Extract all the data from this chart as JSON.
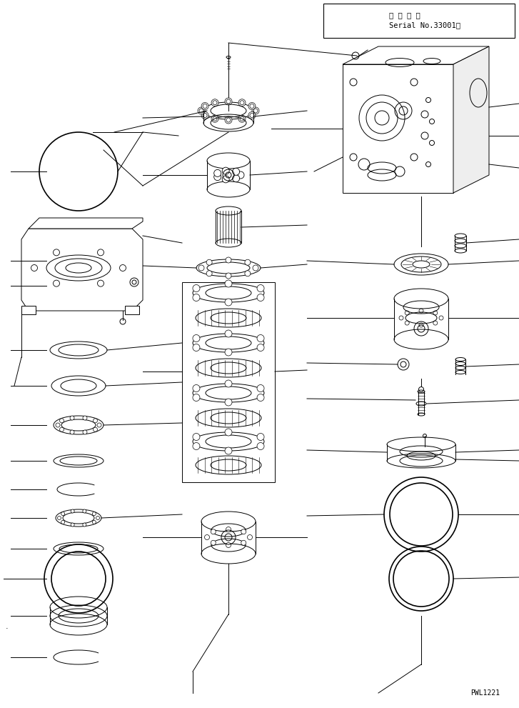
{
  "title_jp": "適 用 号 機",
  "serial": "Serial No.33001～",
  "part_number": "PWL1221",
  "bg_color": "#ffffff",
  "line_color": "#000000",
  "fig_width": 7.27,
  "fig_height": 9.91,
  "dpi": 100
}
